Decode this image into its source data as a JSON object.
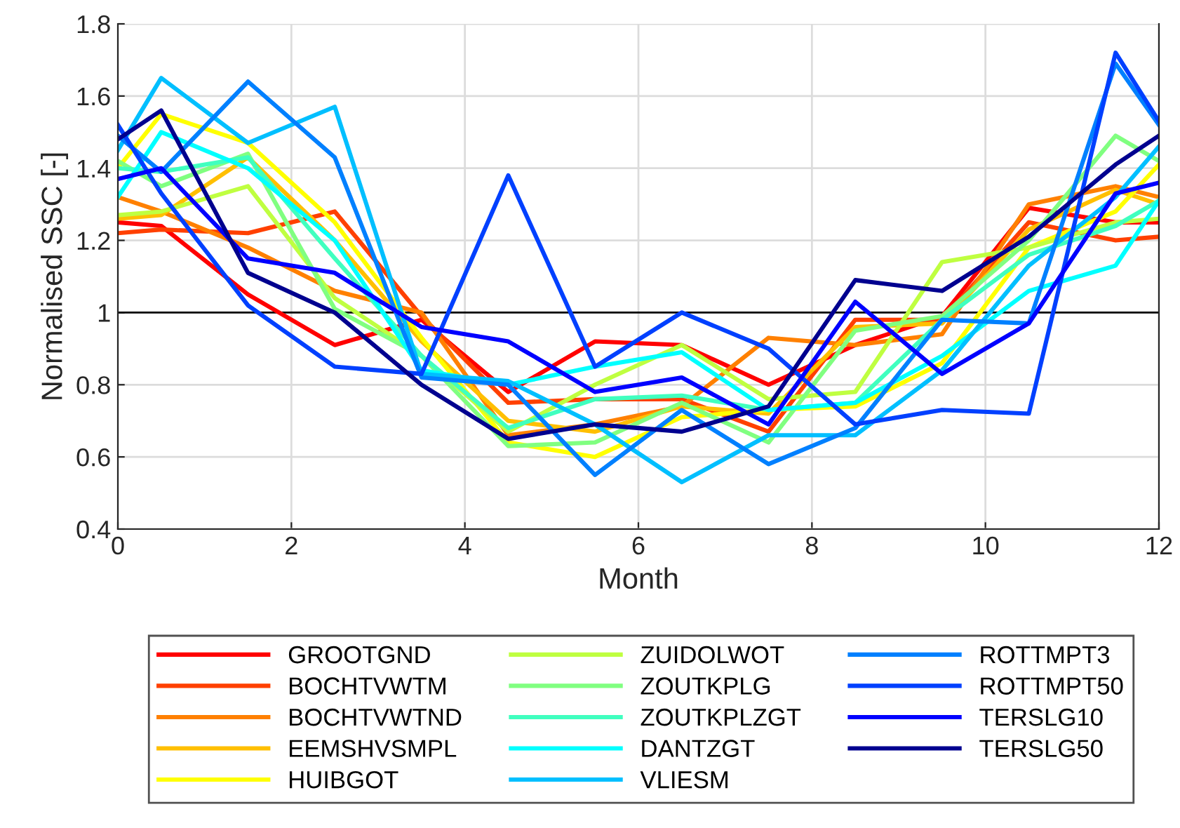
{
  "chart_data": {
    "type": "line",
    "xlabel": "Month",
    "ylabel": "Normalised SSC [-]",
    "x": [
      0,
      0.5,
      1.5,
      2.5,
      3.5,
      4.5,
      5.5,
      6.5,
      7.5,
      8.5,
      9.5,
      10.5,
      11.5,
      12
    ],
    "xlim": [
      0,
      12
    ],
    "xticks": [
      0,
      2,
      4,
      6,
      8,
      10,
      12
    ],
    "ylim": [
      0.4,
      1.8
    ],
    "yticks": [
      0.4,
      0.6,
      0.8,
      1,
      1.2,
      1.4,
      1.6,
      1.8
    ],
    "grid": true,
    "legend": "bottom",
    "line_style": "solid",
    "marker": "none",
    "ref_lines": [
      {
        "axis": "y",
        "value": 1,
        "color": "#000000"
      }
    ],
    "series": [
      {
        "name": "GROOTGND",
        "color": "#ff0000",
        "values": [
          1.25,
          1.24,
          1.05,
          0.91,
          0.98,
          0.78,
          0.92,
          0.91,
          0.8,
          0.91,
          0.99,
          1.29,
          1.25,
          1.25
        ]
      },
      {
        "name": "BOCHTVWTM",
        "color": "#ff4000",
        "values": [
          1.22,
          1.23,
          1.22,
          1.28,
          0.99,
          0.75,
          0.76,
          0.76,
          0.67,
          0.98,
          0.98,
          1.25,
          1.2,
          1.21
        ]
      },
      {
        "name": "BOCHTVWTND",
        "color": "#ff8000",
        "values": [
          1.32,
          1.28,
          1.18,
          1.06,
          1.0,
          0.66,
          0.69,
          0.74,
          0.93,
          0.91,
          0.94,
          1.3,
          1.35,
          1.32
        ]
      },
      {
        "name": "EEMSHVSMPL",
        "color": "#ffbf00",
        "values": [
          1.26,
          1.27,
          1.43,
          1.2,
          0.92,
          0.7,
          0.67,
          0.74,
          0.72,
          0.96,
          0.97,
          1.23,
          1.34,
          1.3
        ]
      },
      {
        "name": "HUIBGOT",
        "color": "#ffff00",
        "values": [
          1.4,
          1.55,
          1.47,
          1.25,
          0.93,
          0.64,
          0.6,
          0.71,
          0.73,
          0.74,
          0.86,
          1.18,
          1.28,
          1.41
        ]
      },
      {
        "name": "ZUIDOLWOT",
        "color": "#bfff40",
        "values": [
          1.27,
          1.28,
          1.35,
          1.04,
          0.88,
          0.67,
          0.8,
          0.91,
          0.76,
          0.78,
          1.14,
          1.18,
          1.25,
          1.26
        ]
      },
      {
        "name": "ZOUTKPLG",
        "color": "#80ff80",
        "values": [
          1.42,
          1.35,
          1.44,
          1.01,
          0.88,
          0.63,
          0.64,
          0.75,
          0.64,
          0.95,
          0.99,
          1.2,
          1.49,
          1.42
        ]
      },
      {
        "name": "ZOUTKPLZGT",
        "color": "#40ffbf",
        "values": [
          1.4,
          1.39,
          1.43,
          1.15,
          0.88,
          0.68,
          0.76,
          0.77,
          0.73,
          0.75,
          0.98,
          1.16,
          1.24,
          1.31
        ]
      },
      {
        "name": "DANTZGT",
        "color": "#00ffff",
        "values": [
          1.32,
          1.5,
          1.4,
          1.2,
          0.84,
          0.8,
          0.85,
          0.89,
          0.73,
          0.75,
          0.88,
          1.06,
          1.13,
          1.31
        ]
      },
      {
        "name": "VLIESM",
        "color": "#00bfff",
        "values": [
          1.45,
          1.65,
          1.47,
          1.57,
          0.83,
          0.81,
          0.69,
          0.53,
          0.66,
          0.66,
          0.84,
          1.13,
          1.32,
          1.46
        ]
      },
      {
        "name": "ROTTMPT3",
        "color": "#0080ff",
        "values": [
          1.49,
          1.39,
          1.64,
          1.43,
          0.82,
          0.8,
          0.55,
          0.73,
          0.58,
          0.68,
          0.98,
          0.97,
          1.69,
          1.52
        ]
      },
      {
        "name": "ROTTMPT50",
        "color": "#0040ff",
        "values": [
          1.52,
          1.33,
          1.02,
          0.85,
          0.83,
          1.38,
          0.85,
          1.0,
          0.9,
          0.69,
          0.73,
          0.72,
          1.72,
          1.53
        ]
      },
      {
        "name": "TERSLG10",
        "color": "#0000ff",
        "values": [
          1.37,
          1.4,
          1.15,
          1.11,
          0.96,
          0.92,
          0.78,
          0.82,
          0.69,
          1.03,
          0.83,
          0.97,
          1.33,
          1.36
        ]
      },
      {
        "name": "TERSLG50",
        "color": "#00008f",
        "values": [
          1.48,
          1.56,
          1.11,
          1.0,
          0.8,
          0.65,
          0.69,
          0.67,
          0.74,
          1.09,
          1.06,
          1.21,
          1.41,
          1.49
        ]
      }
    ]
  }
}
